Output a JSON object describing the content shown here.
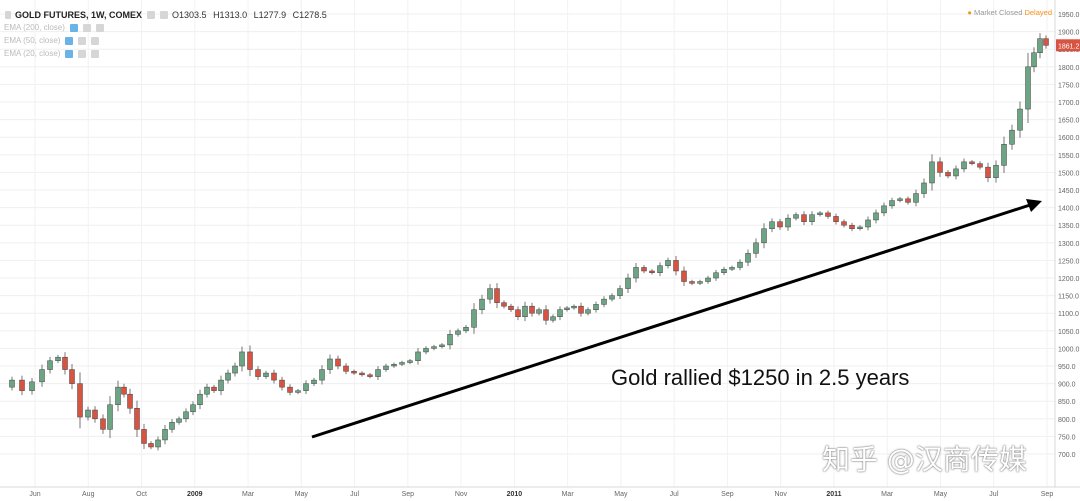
{
  "legend": {
    "symbol": "GOLD FUTURES, 1W, COMEX",
    "open": "O1303.5",
    "high": "H1313.0",
    "low": "L1277.9",
    "close": "C1278.5",
    "indicators": [
      "EMA (200, close)",
      "EMA (50, close)",
      "EMA (20, close)"
    ]
  },
  "status": {
    "market": "Market Closed",
    "delayed": "Delayed"
  },
  "annotation": "Gold rallied $1250 in 2.5 years",
  "watermark": "知乎 @汉商传媒",
  "colors": {
    "up": "#6ba583",
    "down": "#d75442",
    "grid": "#eeeeee",
    "arrow": "#000000",
    "price_tag": "#d75442"
  },
  "chart_data": {
    "type": "candlestick",
    "title": "GOLD FUTURES, 1W, COMEX",
    "x_labels": [
      "Jun",
      "Aug",
      "Oct",
      "2009",
      "Mar",
      "May",
      "Jul",
      "Sep",
      "Nov",
      "2010",
      "Mar",
      "May",
      "Jul",
      "Sep",
      "Nov",
      "2011",
      "Mar",
      "May",
      "Jul",
      "Sep"
    ],
    "y_ticks": [
      700,
      750,
      800,
      850,
      900,
      950,
      1000,
      1050,
      1100,
      1150,
      1200,
      1250,
      1300,
      1350,
      1400,
      1450,
      1500,
      1550,
      1600,
      1650,
      1700,
      1750,
      1800,
      1850,
      1900,
      1950
    ],
    "ylim": [
      680,
      1960
    ],
    "last_price": "1861.2",
    "grid": true,
    "anchors": [
      {
        "x": 0,
        "y": 890
      },
      {
        "x": 12,
        "y": 910
      },
      {
        "x": 22,
        "y": 880
      },
      {
        "x": 32,
        "y": 905
      },
      {
        "x": 42,
        "y": 940
      },
      {
        "x": 50,
        "y": 965
      },
      {
        "x": 58,
        "y": 975
      },
      {
        "x": 65,
        "y": 940
      },
      {
        "x": 72,
        "y": 900
      },
      {
        "x": 80,
        "y": 805
      },
      {
        "x": 88,
        "y": 825
      },
      {
        "x": 95,
        "y": 800
      },
      {
        "x": 103,
        "y": 770
      },
      {
        "x": 110,
        "y": 840
      },
      {
        "x": 118,
        "y": 890
      },
      {
        "x": 124,
        "y": 870
      },
      {
        "x": 130,
        "y": 830
      },
      {
        "x": 137,
        "y": 770
      },
      {
        "x": 144,
        "y": 730
      },
      {
        "x": 151,
        "y": 720
      },
      {
        "x": 158,
        "y": 740
      },
      {
        "x": 165,
        "y": 770
      },
      {
        "x": 172,
        "y": 790
      },
      {
        "x": 179,
        "y": 800
      },
      {
        "x": 186,
        "y": 820
      },
      {
        "x": 193,
        "y": 840
      },
      {
        "x": 200,
        "y": 870
      },
      {
        "x": 207,
        "y": 890
      },
      {
        "x": 214,
        "y": 880
      },
      {
        "x": 221,
        "y": 910
      },
      {
        "x": 228,
        "y": 930
      },
      {
        "x": 235,
        "y": 950
      },
      {
        "x": 242,
        "y": 990
      },
      {
        "x": 250,
        "y": 940
      },
      {
        "x": 258,
        "y": 920
      },
      {
        "x": 266,
        "y": 930
      },
      {
        "x": 274,
        "y": 910
      },
      {
        "x": 282,
        "y": 890
      },
      {
        "x": 290,
        "y": 875
      },
      {
        "x": 298,
        "y": 880
      },
      {
        "x": 306,
        "y": 900
      },
      {
        "x": 314,
        "y": 910
      },
      {
        "x": 322,
        "y": 940
      },
      {
        "x": 330,
        "y": 970
      },
      {
        "x": 338,
        "y": 950
      },
      {
        "x": 346,
        "y": 935
      },
      {
        "x": 354,
        "y": 930
      },
      {
        "x": 362,
        "y": 925
      },
      {
        "x": 370,
        "y": 920
      },
      {
        "x": 378,
        "y": 940
      },
      {
        "x": 386,
        "y": 950
      },
      {
        "x": 394,
        "y": 955
      },
      {
        "x": 402,
        "y": 960
      },
      {
        "x": 410,
        "y": 965
      },
      {
        "x": 418,
        "y": 990
      },
      {
        "x": 426,
        "y": 1000
      },
      {
        "x": 434,
        "y": 1005
      },
      {
        "x": 442,
        "y": 1010
      },
      {
        "x": 450,
        "y": 1040
      },
      {
        "x": 458,
        "y": 1050
      },
      {
        "x": 466,
        "y": 1060
      },
      {
        "x": 474,
        "y": 1110
      },
      {
        "x": 482,
        "y": 1140
      },
      {
        "x": 490,
        "y": 1170
      },
      {
        "x": 497,
        "y": 1130
      },
      {
        "x": 504,
        "y": 1120
      },
      {
        "x": 511,
        "y": 1110
      },
      {
        "x": 518,
        "y": 1090
      },
      {
        "x": 525,
        "y": 1120
      },
      {
        "x": 532,
        "y": 1100
      },
      {
        "x": 539,
        "y": 1110
      },
      {
        "x": 546,
        "y": 1080
      },
      {
        "x": 553,
        "y": 1090
      },
      {
        "x": 560,
        "y": 1110
      },
      {
        "x": 567,
        "y": 1115
      },
      {
        "x": 574,
        "y": 1120
      },
      {
        "x": 581,
        "y": 1100
      },
      {
        "x": 588,
        "y": 1110
      },
      {
        "x": 596,
        "y": 1125
      },
      {
        "x": 604,
        "y": 1140
      },
      {
        "x": 612,
        "y": 1150
      },
      {
        "x": 620,
        "y": 1170
      },
      {
        "x": 628,
        "y": 1200
      },
      {
        "x": 636,
        "y": 1230
      },
      {
        "x": 644,
        "y": 1220
      },
      {
        "x": 652,
        "y": 1215
      },
      {
        "x": 660,
        "y": 1235
      },
      {
        "x": 668,
        "y": 1250
      },
      {
        "x": 676,
        "y": 1220
      },
      {
        "x": 684,
        "y": 1190
      },
      {
        "x": 692,
        "y": 1185
      },
      {
        "x": 700,
        "y": 1190
      },
      {
        "x": 708,
        "y": 1200
      },
      {
        "x": 716,
        "y": 1215
      },
      {
        "x": 724,
        "y": 1225
      },
      {
        "x": 732,
        "y": 1230
      },
      {
        "x": 740,
        "y": 1245
      },
      {
        "x": 748,
        "y": 1270
      },
      {
        "x": 756,
        "y": 1300
      },
      {
        "x": 764,
        "y": 1340
      },
      {
        "x": 772,
        "y": 1360
      },
      {
        "x": 780,
        "y": 1345
      },
      {
        "x": 788,
        "y": 1370
      },
      {
        "x": 796,
        "y": 1380
      },
      {
        "x": 804,
        "y": 1360
      },
      {
        "x": 812,
        "y": 1380
      },
      {
        "x": 820,
        "y": 1385
      },
      {
        "x": 828,
        "y": 1375
      },
      {
        "x": 836,
        "y": 1360
      },
      {
        "x": 844,
        "y": 1350
      },
      {
        "x": 852,
        "y": 1340
      },
      {
        "x": 860,
        "y": 1345
      },
      {
        "x": 868,
        "y": 1365
      },
      {
        "x": 876,
        "y": 1385
      },
      {
        "x": 884,
        "y": 1405
      },
      {
        "x": 892,
        "y": 1420
      },
      {
        "x": 900,
        "y": 1425
      },
      {
        "x": 908,
        "y": 1415
      },
      {
        "x": 916,
        "y": 1440
      },
      {
        "x": 924,
        "y": 1470
      },
      {
        "x": 932,
        "y": 1530
      },
      {
        "x": 940,
        "y": 1500
      },
      {
        "x": 948,
        "y": 1490
      },
      {
        "x": 956,
        "y": 1510
      },
      {
        "x": 964,
        "y": 1530
      },
      {
        "x": 972,
        "y": 1525
      },
      {
        "x": 980,
        "y": 1515
      },
      {
        "x": 988,
        "y": 1485
      },
      {
        "x": 996,
        "y": 1520
      },
      {
        "x": 1004,
        "y": 1580
      },
      {
        "x": 1012,
        "y": 1620
      },
      {
        "x": 1020,
        "y": 1680
      },
      {
        "x": 1028,
        "y": 1800
      },
      {
        "x": 1034,
        "y": 1840
      },
      {
        "x": 1040,
        "y": 1880
      },
      {
        "x": 1046,
        "y": 1861
      }
    ]
  }
}
